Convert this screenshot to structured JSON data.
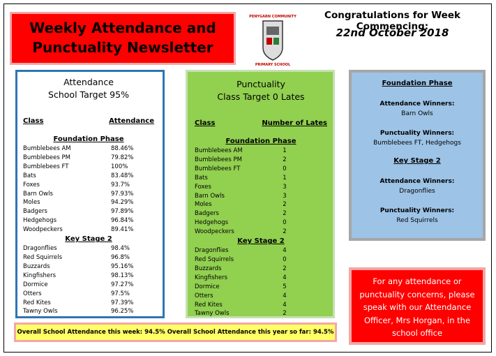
{
  "header": {
    "title": "Weekly Attendance and Punctuality Newsletter",
    "logo_top": "PENYGARN COMMUNITY",
    "logo_bottom": "PRIMARY SCHOOL",
    "congrats": "Congratulations for Week Commencing:",
    "date": "22nd October 2018"
  },
  "attendance": {
    "title": "Attendance",
    "target": "School Target 95%",
    "col_headers": [
      "Class",
      "Attendance"
    ],
    "sections": [
      {
        "name": "Foundation Phase",
        "rows": [
          [
            "Bumblebees AM",
            "88.46%"
          ],
          [
            "Bumblebees PM",
            "79.82%"
          ],
          [
            "Bumblebees FT",
            "100%"
          ],
          [
            "Bats",
            "83.48%"
          ],
          [
            "Foxes",
            "93.7%"
          ],
          [
            "Barn Owls",
            "97.93%"
          ],
          [
            "Moles",
            "94.29%"
          ],
          [
            "Badgers",
            "97.89%"
          ],
          [
            "Hedgehogs",
            "96.84%"
          ],
          [
            "Woodpeckers",
            "89.41%"
          ]
        ]
      },
      {
        "name": "Key Stage 2",
        "rows": [
          [
            "Dragonflies",
            "98.4%"
          ],
          [
            "Red Squirrels",
            "96.8%"
          ],
          [
            "Buzzards",
            "95.16%"
          ],
          [
            "Kingfishers",
            "98.13%"
          ],
          [
            "Dormice",
            "97.27%"
          ],
          [
            "Otters",
            "97.5%"
          ],
          [
            "Red Kites",
            "97.39%"
          ],
          [
            "Tawny Owls",
            "96.25%"
          ]
        ]
      }
    ]
  },
  "punctuality": {
    "title": "Punctuality",
    "target": "Class Target 0 Lates",
    "col_headers": [
      "Class",
      "Number of Lates"
    ],
    "sections": [
      {
        "name": "Foundation Phase",
        "rows": [
          [
            "Bumblebees AM",
            1
          ],
          [
            "Bumblebees PM",
            2
          ],
          [
            "Bumblebees FT",
            0
          ],
          [
            "Bats",
            1
          ],
          [
            "Foxes",
            3
          ],
          [
            "Barn Owls",
            3
          ],
          [
            "Moles",
            2
          ],
          [
            "Badgers",
            2
          ],
          [
            "Hedgehogs",
            0
          ],
          [
            "Woodpeckers",
            2
          ]
        ]
      },
      {
        "name": "Key Stage 2",
        "rows": [
          [
            "Dragonflies",
            4
          ],
          [
            "Red Squirrels",
            0
          ],
          [
            "Buzzards",
            2
          ],
          [
            "Kingfishers",
            4
          ],
          [
            "Dormice",
            5
          ],
          [
            "Otters",
            4
          ],
          [
            "Red Kites",
            4
          ],
          [
            "Tawny Owls",
            2
          ]
        ]
      }
    ]
  },
  "winners": {
    "sections": [
      {
        "name": "Foundation Phase",
        "attendance_label": "Attendance Winners:",
        "attendance": "Barn Owls",
        "punctuality_label": "Punctuality Winners:",
        "punctuality": "Bumblebees FT, Hedgehogs"
      },
      {
        "name": "Key Stage 2",
        "attendance_label": "Attendance Winners:",
        "attendance": "Dragonflies",
        "punctuality_label": "Punctuality Winners:",
        "punctuality": "Red Squirrels"
      }
    ]
  },
  "concerns": "For any attendance or punctuality concerns, please speak with our Attendance Officer, Mrs Horgan, in the school office",
  "footer": [
    "Overall School Attendance this week: 94.5%",
    "Overall School Attendance this year so far: 94.5%"
  ]
}
